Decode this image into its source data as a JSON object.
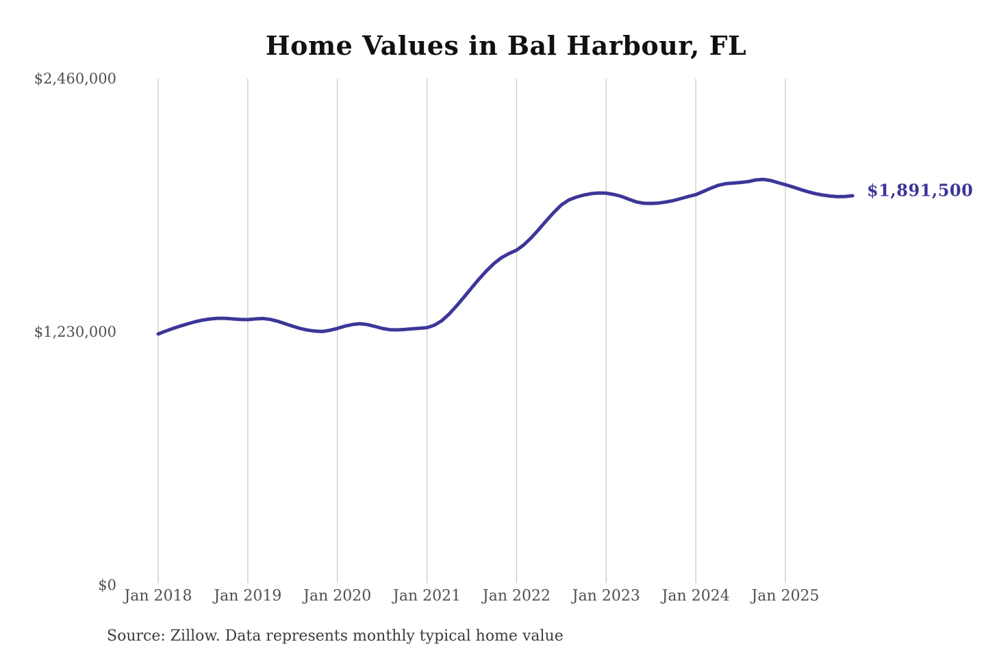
{
  "chart": {
    "title": "Home Values in Bal Harbour, FL",
    "source_note": "Source: Zillow. Data represents monthly typical home value"
  },
  "chart_data": {
    "type": "line",
    "title": "Home Values in Bal Harbour, FL",
    "xlabel": "",
    "ylabel": "",
    "ylim": [
      0,
      2460000
    ],
    "grid": "vertical-only",
    "legend": "none",
    "end_label": "$1,891,500",
    "latest_value": 1891500,
    "y_ticks": [
      {
        "label": "$0",
        "value": 0
      },
      {
        "label": "$1,230,000",
        "value": 1230000
      },
      {
        "label": "$2,460,000",
        "value": 2460000
      }
    ],
    "x_ticks": [
      "Jan 2018",
      "Jan 2019",
      "Jan 2020",
      "Jan 2021",
      "Jan 2022",
      "Jan 2023",
      "Jan 2024",
      "Jan 2025"
    ],
    "colors": {
      "line": "#3d3699",
      "gridline": "#c9c9c9",
      "tick_text": "#4f4f4f",
      "title_text": "#111111",
      "source_text": "#3c3c3c",
      "end_label_text": "#3d3699",
      "background": "#ffffff"
    },
    "series": [
      {
        "name": "Typical home value (monthly)",
        "months": [
          "2018-01",
          "2018-02",
          "2018-03",
          "2018-04",
          "2018-05",
          "2018-06",
          "2018-07",
          "2018-08",
          "2018-09",
          "2018-10",
          "2018-11",
          "2018-12",
          "2019-01",
          "2019-02",
          "2019-03",
          "2019-04",
          "2019-05",
          "2019-06",
          "2019-07",
          "2019-08",
          "2019-09",
          "2019-10",
          "2019-11",
          "2019-12",
          "2020-01",
          "2020-02",
          "2020-03",
          "2020-04",
          "2020-05",
          "2020-06",
          "2020-07",
          "2020-08",
          "2020-09",
          "2020-10",
          "2020-11",
          "2020-12",
          "2021-01",
          "2021-02",
          "2021-03",
          "2021-04",
          "2021-05",
          "2021-06",
          "2021-07",
          "2021-08",
          "2021-09",
          "2021-10",
          "2021-11",
          "2021-12",
          "2022-01",
          "2022-02",
          "2022-03",
          "2022-04",
          "2022-05",
          "2022-06",
          "2022-07",
          "2022-08",
          "2022-09",
          "2022-10",
          "2022-11",
          "2022-12",
          "2023-01",
          "2023-02",
          "2023-03",
          "2023-04",
          "2023-05",
          "2023-06",
          "2023-07",
          "2023-08",
          "2023-09",
          "2023-10",
          "2023-11",
          "2023-12",
          "2024-01",
          "2024-02",
          "2024-03",
          "2024-04",
          "2024-05",
          "2024-06",
          "2024-07",
          "2024-08",
          "2024-09",
          "2024-10",
          "2024-11",
          "2024-12",
          "2025-01",
          "2025-02",
          "2025-03",
          "2025-04",
          "2025-05",
          "2025-06",
          "2025-07",
          "2025-08",
          "2025-09",
          "2025-10"
        ],
        "values": [
          1220000,
          1234000,
          1247000,
          1259000,
          1270000,
          1280000,
          1288000,
          1293000,
          1296000,
          1296000,
          1293000,
          1291000,
          1290000,
          1293000,
          1295000,
          1291000,
          1282000,
          1270000,
          1258000,
          1247000,
          1239000,
          1234000,
          1232000,
          1238000,
          1247000,
          1258000,
          1266000,
          1270000,
          1266000,
          1257000,
          1247000,
          1241000,
          1240000,
          1242000,
          1245000,
          1248000,
          1251000,
          1263000,
          1285000,
          1318000,
          1358000,
          1401000,
          1445000,
          1488000,
          1528000,
          1563000,
          1591000,
          1611000,
          1627000,
          1654000,
          1689000,
          1729000,
          1771000,
          1811000,
          1847000,
          1871000,
          1885000,
          1895000,
          1902000,
          1905000,
          1904000,
          1898000,
          1889000,
          1875000,
          1862000,
          1855000,
          1854000,
          1856000,
          1861000,
          1868000,
          1878000,
          1888000,
          1897000,
          1912000,
          1928000,
          1942000,
          1950000,
          1953000,
          1956000,
          1960000,
          1968000,
          1971000,
          1966000,
          1955000,
          1945000,
          1934000,
          1922000,
          1911000,
          1902000,
          1895000,
          1890000,
          1887000,
          1888000,
          1891500
        ]
      }
    ]
  }
}
